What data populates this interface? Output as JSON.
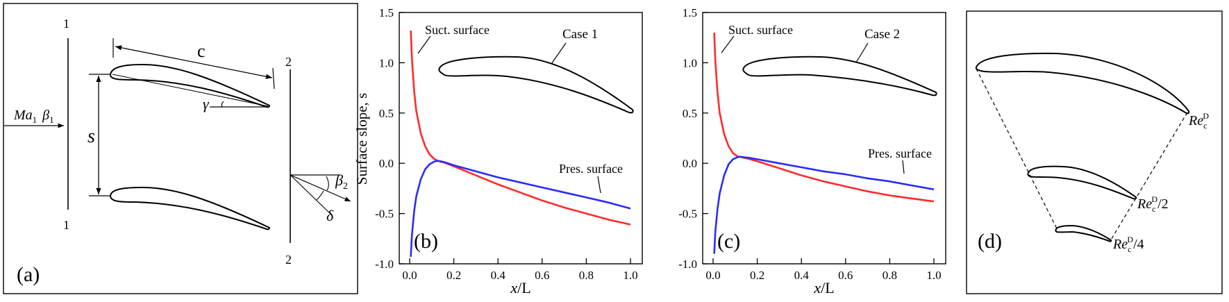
{
  "panel_a": {
    "label": "(a)",
    "station_in": "1",
    "station_out": "2",
    "inlet_ma": "Ma",
    "inlet_ma_sub": "1",
    "inlet_beta": "β",
    "inlet_beta_sub": "1",
    "chord_label": "c",
    "pitch_label": "s",
    "stagger_label": "γ",
    "exit_beta": "β",
    "exit_beta_sub": "2",
    "deviation_label": "δ"
  },
  "panel_d": {
    "label": "(d)",
    "re_full": "Re",
    "re_sub": "c",
    "re_sup": "D",
    "re_half_suffix": "/2",
    "re_quarter_suffix": "/4"
  },
  "chart_data": [
    {
      "type": "line",
      "panel_label": "(b)",
      "xlabel_var": "x",
      "xlabel_rest": "/L",
      "ylabel": "Surface slope, s",
      "xlim": [
        0.0,
        1.0
      ],
      "ylim": [
        -1.0,
        1.5
      ],
      "xticks": [
        0.0,
        0.2,
        0.4,
        0.6,
        0.8,
        1.0
      ],
      "xtick_labels": [
        "0.0",
        "0.2",
        "0.4",
        "0.6",
        "0.8",
        "1.0"
      ],
      "yticks": [
        -1.0,
        -0.5,
        0.0,
        0.5,
        1.0,
        1.5
      ],
      "ytick_labels": [
        "-1.0",
        "-0.5",
        "0.0",
        "0.5",
        "1.0",
        "1.5"
      ],
      "annotations": [
        "Suct. surface",
        "Pres. surface",
        "Case 1"
      ],
      "series": [
        {
          "name": "Suct. surface",
          "color": "#ff2a2a",
          "x": [
            0.005,
            0.01,
            0.02,
            0.03,
            0.05,
            0.07,
            0.09,
            0.11,
            0.13,
            0.16,
            0.2,
            0.3,
            0.4,
            0.5,
            0.6,
            0.7,
            0.8,
            0.9,
            1.0
          ],
          "y": [
            1.32,
            1.05,
            0.72,
            0.52,
            0.3,
            0.17,
            0.09,
            0.045,
            0.022,
            0.005,
            -0.03,
            -0.12,
            -0.21,
            -0.29,
            -0.37,
            -0.44,
            -0.5,
            -0.56,
            -0.61
          ]
        },
        {
          "name": "Pres. surface",
          "color": "#2a2aff",
          "x": [
            0.005,
            0.01,
            0.02,
            0.03,
            0.05,
            0.07,
            0.09,
            0.11,
            0.125,
            0.14,
            0.16,
            0.2,
            0.3,
            0.4,
            0.5,
            0.6,
            0.7,
            0.8,
            0.9,
            1.0
          ],
          "y": [
            -0.93,
            -0.72,
            -0.48,
            -0.33,
            -0.16,
            -0.06,
            -0.01,
            0.015,
            0.025,
            0.02,
            0.01,
            -0.02,
            -0.08,
            -0.14,
            -0.19,
            -0.24,
            -0.29,
            -0.34,
            -0.39,
            -0.45
          ]
        }
      ]
    },
    {
      "type": "line",
      "panel_label": "(c)",
      "xlabel_var": "x",
      "xlabel_rest": "/L",
      "ylabel": "",
      "xlim": [
        0.0,
        1.0
      ],
      "ylim": [
        -1.0,
        1.5
      ],
      "xticks": [
        0.0,
        0.2,
        0.4,
        0.6,
        0.8,
        1.0
      ],
      "xtick_labels": [
        "0.0",
        "0.2",
        "0.4",
        "0.6",
        "0.8",
        "1.0"
      ],
      "yticks": [
        -1.0,
        -0.5,
        0.0,
        0.5,
        1.0,
        1.5
      ],
      "ytick_labels": [
        "-1.0",
        "-0.5",
        "0.0",
        "0.5",
        "1.0",
        "1.5"
      ],
      "annotations": [
        "Suct. surface",
        "Pres. surface",
        "Case 2"
      ],
      "series": [
        {
          "name": "Suct. surface",
          "color": "#ff2a2a",
          "x": [
            0.005,
            0.01,
            0.02,
            0.03,
            0.05,
            0.07,
            0.09,
            0.11,
            0.13,
            0.16,
            0.2,
            0.3,
            0.4,
            0.5,
            0.6,
            0.7,
            0.8,
            0.9,
            1.0
          ],
          "y": [
            1.3,
            1.02,
            0.7,
            0.5,
            0.29,
            0.17,
            0.1,
            0.07,
            0.06,
            0.045,
            0.02,
            -0.05,
            -0.12,
            -0.18,
            -0.23,
            -0.28,
            -0.32,
            -0.35,
            -0.38
          ]
        },
        {
          "name": "Pres. surface",
          "color": "#2a2aff",
          "x": [
            0.005,
            0.01,
            0.02,
            0.03,
            0.05,
            0.07,
            0.09,
            0.11,
            0.125,
            0.14,
            0.16,
            0.2,
            0.3,
            0.4,
            0.5,
            0.6,
            0.7,
            0.8,
            0.9,
            1.0
          ],
          "y": [
            -0.9,
            -0.68,
            -0.45,
            -0.3,
            -0.12,
            -0.01,
            0.04,
            0.06,
            0.065,
            0.06,
            0.055,
            0.04,
            0.0,
            -0.04,
            -0.08,
            -0.11,
            -0.15,
            -0.18,
            -0.22,
            -0.26
          ]
        }
      ]
    }
  ]
}
